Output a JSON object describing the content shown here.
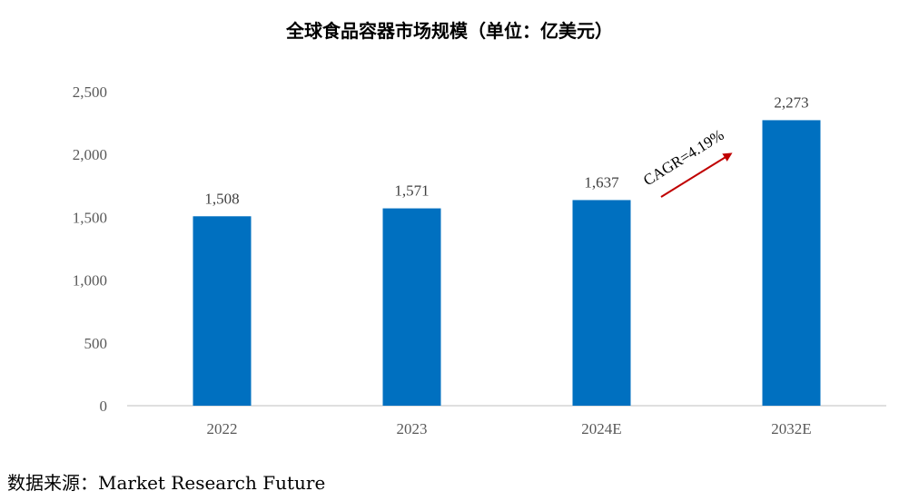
{
  "chart_data": {
    "type": "bar",
    "title": "全球食品容器市场规模（单位：亿美元）",
    "categories": [
      "2022",
      "2023",
      "2024E",
      "2032E"
    ],
    "values": [
      1508,
      1571,
      1637,
      2273
    ],
    "value_labels": [
      "1,508",
      "1,571",
      "1,637",
      "2,273"
    ],
    "ylim": [
      0,
      2500
    ],
    "yticks": [
      0,
      500,
      1000,
      1500,
      2000,
      2500
    ],
    "ytick_labels": [
      "0",
      "500",
      "1,000",
      "1,500",
      "2,000",
      "2,500"
    ],
    "xlabel": "",
    "ylabel": "",
    "grid": false,
    "bar_color": "#0070C0",
    "annotation": {
      "text": "CAGR=4.19%",
      "arrow_color": "#C00000"
    }
  },
  "source": "数据来源：Market Research Future"
}
